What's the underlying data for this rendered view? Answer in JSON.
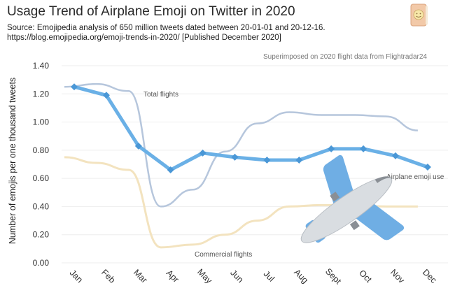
{
  "title": "Usage Trend of Airplane Emoji on Twitter in 2020",
  "source_line1": "Source: Emojipedia analysis of 650 million tweets dated between 20-01-01 and 20-12-16.",
  "source_line2": "https://blog.emojipedia.org/emoji-trends-in-2020/ [Published December 2020]",
  "note": "Superimposed on 2020 flight data from Flightradar24",
  "badge_icon": "emojipedia-book-icon",
  "plane_icon": "airplane-emoji-icon",
  "colors": {
    "emoji_line": "#6ab0e6",
    "emoji_marker": "#4a97d6",
    "total_flights": "#b6c6dc",
    "commercial_flights": "#f3e3bf",
    "grid": "#eeeeee"
  },
  "chart_data": {
    "type": "line",
    "title": "Usage Trend of Airplane Emoji on Twitter in 2020",
    "xlabel": "",
    "ylabel": "Number of emojis per one thousand tweets",
    "ylim": [
      0,
      1.4
    ],
    "yticks": [
      "0.00",
      "0.20",
      "0.40",
      "0.60",
      "0.80",
      "1.00",
      "1.20",
      "1.40"
    ],
    "categories": [
      "Jan",
      "Feb",
      "Mar",
      "Apr",
      "May",
      "Jun",
      "Jul",
      "Aug",
      "Sept",
      "Oct",
      "Nov",
      "Dec"
    ],
    "grid": true,
    "series": [
      {
        "name": "Airplane emoji use",
        "values": [
          1.25,
          1.19,
          0.83,
          0.66,
          0.78,
          0.75,
          0.73,
          0.73,
          0.81,
          0.81,
          0.76,
          0.68
        ]
      },
      {
        "name": "Total flights",
        "values": [
          1.25,
          1.27,
          1.22,
          0.4,
          0.52,
          0.79,
          0.99,
          1.07,
          1.05,
          1.05,
          1.04,
          0.94
        ]
      },
      {
        "name": "Commercial flights",
        "values": [
          0.75,
          0.71,
          0.66,
          0.11,
          0.13,
          0.2,
          0.3,
          0.4,
          0.41,
          0.41,
          0.4,
          0.4
        ]
      }
    ]
  }
}
